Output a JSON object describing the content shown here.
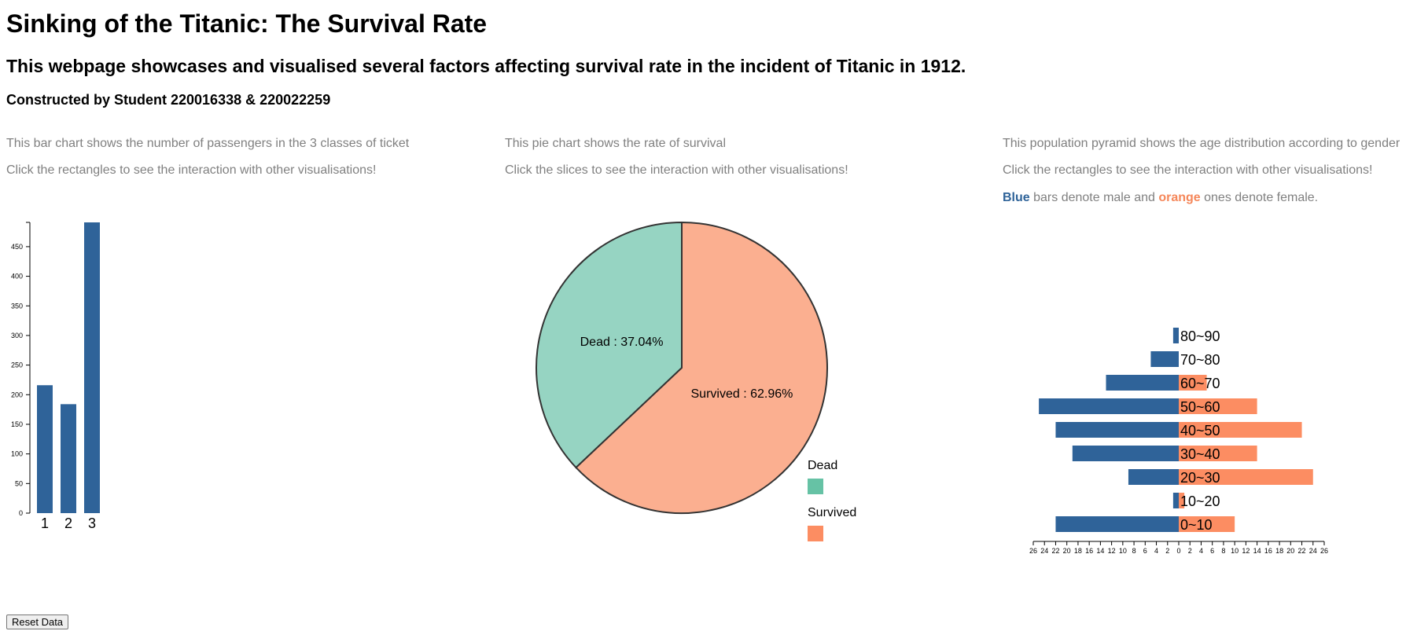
{
  "page": {
    "title": "Sinking of the Titanic: The Survival Rate",
    "subtitle": "This webpage showcases and visualised several factors affecting survival rate in the incident of Titanic in 1912.",
    "credit": "Constructed by Student 220016338 & 220022259",
    "reset_label": "Reset Data"
  },
  "bar_panel": {
    "line1": "This bar chart shows the number of passengers in the 3 classes of ticket",
    "line2": "Click the rectangles to see the interaction with other visualisations!"
  },
  "pie_panel": {
    "line1": "This pie chart shows the rate of survival",
    "line2": "Click the slices to see the interaction with other visualisations!"
  },
  "pyramid_panel": {
    "line1": "This population pyramid shows the age distribution according to gender",
    "line2": "Click the rectangles to see the interaction with other visualisations!",
    "legend_blue": "Blue",
    "legend_mid": " bars denote male and ",
    "legend_orange": "orange",
    "legend_end": " ones denote female."
  },
  "colors": {
    "bar": "#2f6399",
    "dead": "#96d4c2",
    "survived": "#fbaf90",
    "legend_dead": "#66c2a5",
    "legend_survived": "#fc8d62",
    "male": "#2f6399",
    "female": "#fc8d62"
  },
  "chart_data": [
    {
      "type": "bar",
      "categories": [
        "1",
        "2",
        "3"
      ],
      "values": [
        216,
        184,
        491
      ],
      "ylim": [
        0,
        491
      ],
      "yticks": [
        0,
        50,
        100,
        150,
        200,
        250,
        300,
        350,
        400,
        450
      ]
    },
    {
      "type": "pie",
      "labels": [
        "Dead",
        "Survived"
      ],
      "values": [
        37.04,
        62.96
      ],
      "slice_labels": [
        "Dead : 37.04%",
        "Survived : 62.96%"
      ],
      "legend": [
        "Dead",
        "Survived"
      ]
    },
    {
      "type": "bar",
      "subtype": "population-pyramid",
      "categories": [
        "0~10",
        "10~20",
        "20~30",
        "30~40",
        "40~50",
        "50~60",
        "60~70",
        "70~80",
        "80~90"
      ],
      "series": [
        {
          "name": "male",
          "values": [
            22,
            1,
            9,
            19,
            22,
            25,
            13,
            5,
            1
          ]
        },
        {
          "name": "female",
          "values": [
            10,
            1,
            24,
            14,
            22,
            14,
            5,
            0,
            0
          ]
        }
      ],
      "xlim": [
        -26,
        26
      ],
      "xticks": [
        "26",
        "24",
        "22",
        "20",
        "18",
        "16",
        "14",
        "12",
        "10",
        "8",
        "6",
        "4",
        "2",
        "0",
        "2",
        "4",
        "6",
        "8",
        "10",
        "12",
        "14",
        "16",
        "18",
        "20",
        "22",
        "24",
        "26"
      ]
    }
  ]
}
